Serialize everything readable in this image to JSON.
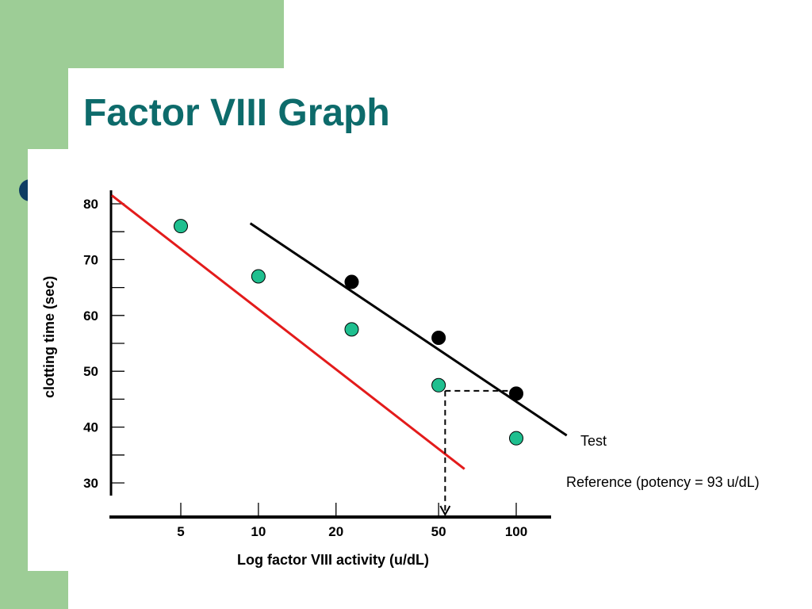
{
  "slide": {
    "title": "Factor VIII Graph",
    "colors": {
      "title": "#0d6b6b",
      "background_green": "#9dcd96",
      "bullet": "#0e3d63"
    }
  },
  "chart_data": {
    "type": "line",
    "title": "",
    "xlabel": "Log factor VIII activity (u/dL)",
    "ylabel": "clotting time (sec)",
    "x_scale": "log",
    "x_ticks": [
      5,
      10,
      20,
      50,
      100
    ],
    "y_ticks": [
      30,
      40,
      50,
      60,
      70,
      80
    ],
    "ylim": [
      30,
      80
    ],
    "series": [
      {
        "name": "Reference (potency = 93 u/dL)",
        "color": "#e31b1b",
        "marker_color": "#1fbf8f",
        "x": [
          5,
          10,
          23,
          50,
          100
        ],
        "y": [
          76,
          67,
          57.5,
          47.5,
          38
        ],
        "line": {
          "x": [
            2.7,
            63
          ],
          "y": [
            81.5,
            32.5
          ]
        }
      },
      {
        "name": "Test",
        "color": "#000000",
        "marker_color": "#000000",
        "x": [
          23,
          50,
          100
        ],
        "y": [
          66,
          56,
          46
        ],
        "line": {
          "x": [
            9.3,
            157
          ],
          "y": [
            76.5,
            38.5
          ]
        }
      }
    ],
    "annotation": {
      "description": "dashed line from Test at 46 sec across to Reference and down to x-axis",
      "y": 46.5,
      "x": 53
    }
  }
}
